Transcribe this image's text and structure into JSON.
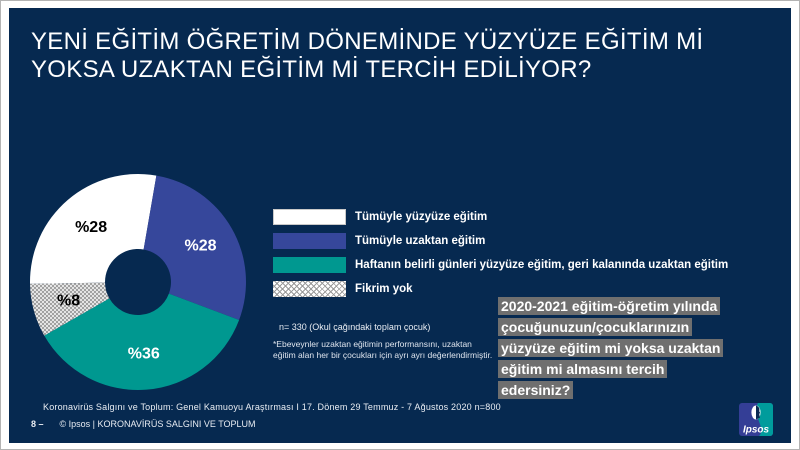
{
  "colors": {
    "slide_background": "#062950",
    "accent_blue": "#36479B",
    "accent_teal": "#009890",
    "hatch_gray": "#9A9A9A",
    "question_highlight": "#6F6F6F",
    "text_white": "#FFFFFF"
  },
  "slide": {
    "title": "YENİ EĞİTİM ÖĞRETİM DÖNEMİNDE YÜZYÜZE EĞİTİM Mİ\nYOKSA UZAKTAN EĞİTİM Mİ TERCİH EDİLİYOR?",
    "source_line": "Koronavirüs Salgını ve Toplum:  Genel Kamuoyu Araştırması I  17.  Dönem  29 Temmuz  - 7 Ağustos 2020   n=800",
    "page_number": "8 –",
    "copyright": "© Ipsos | KORONAVİRÜS  SALGINI VE TOPLUM",
    "logo_text": "Ipsos"
  },
  "notes": {
    "sample": "n= 330 (Okul çağındaki toplam  çocuk)",
    "footnote": "*Ebeveynler uzaktan eğitimin performansını, uzaktan\neğitim alan her bir çocukları için ayrı ayrı değerlendirmiştir."
  },
  "question_box": {
    "text": "2020-2021 eğitim-öğretim yılında\nçocuğunuzun/çocuklarınızın\nyüzyüze eğitim mi yoksa uzaktan\neğitim mi almasını tercih\nedersiniz?",
    "background": "#6F6F6F"
  },
  "chart_data": {
    "type": "pie",
    "donut": true,
    "start_angle_deg": 269,
    "categories": [
      "Tümüyle  yüzyüze  eğitim",
      "Tümüyle  uzaktan eğitim",
      "Haftanın belirli günleri yüzyüze  eğitim, geri kalanında uzaktan eğitim",
      "Fikrim yok"
    ],
    "values": [
      28,
      28,
      36,
      8
    ],
    "labels": [
      "%28",
      "%28",
      "%36",
      "%8"
    ],
    "colors": [
      "#FFFFFF",
      "#36479B",
      "#009890",
      "pattern-hatch"
    ],
    "label_colors": [
      "#000000",
      "#FFFFFF",
      "#FFFFFF",
      "#000000"
    ],
    "legend_position": "right"
  }
}
